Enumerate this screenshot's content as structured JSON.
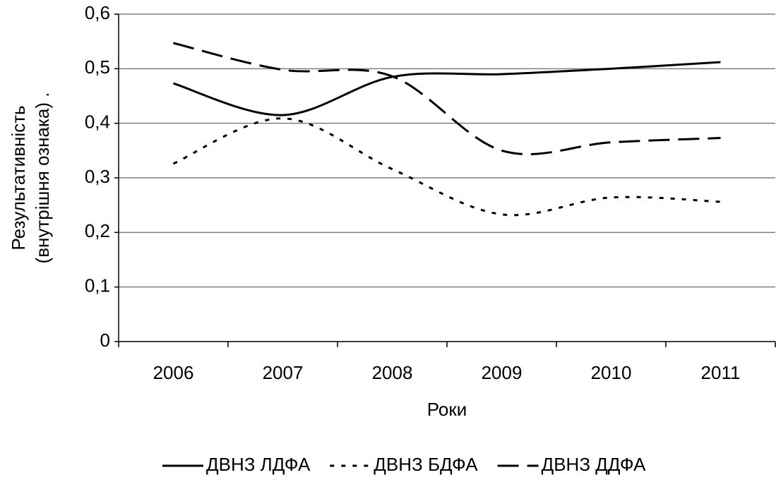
{
  "chart_data": {
    "type": "line",
    "categories": [
      "2006",
      "2007",
      "2008",
      "2009",
      "2010",
      "2011"
    ],
    "series": [
      {
        "name": "ДВНЗ ЛДФА",
        "color": "#000000",
        "dash": "solid",
        "values": [
          0.473,
          0.415,
          0.485,
          0.49,
          0.5,
          0.512
        ]
      },
      {
        "name": "ДВНЗ БДФА",
        "color": "#000000",
        "dash": "dotted",
        "values": [
          0.326,
          0.409,
          0.316,
          0.233,
          0.264,
          0.256
        ]
      },
      {
        "name": "ДВНЗ ДДФА",
        "color": "#000000",
        "dash": "dashed",
        "values": [
          0.547,
          0.498,
          0.486,
          0.35,
          0.365,
          0.373
        ]
      }
    ],
    "ylim": [
      0,
      0.6
    ],
    "yticks": [
      0,
      {
        "value": 0.1,
        "label": "0,1"
      },
      {
        "value": 0.2,
        "label": "0,2"
      },
      {
        "value": 0.3,
        "label": "0,3"
      },
      {
        "value": 0.4,
        "label": "0,4"
      },
      {
        "value": 0.5,
        "label": "0,5"
      },
      {
        "value": 0.6,
        "label": "0,6"
      }
    ],
    "xlabel": "Роки",
    "ylabel": [
      "Результативність",
      "(внутрішня ознака) ."
    ],
    "grid": true,
    "legend": "bottom"
  }
}
